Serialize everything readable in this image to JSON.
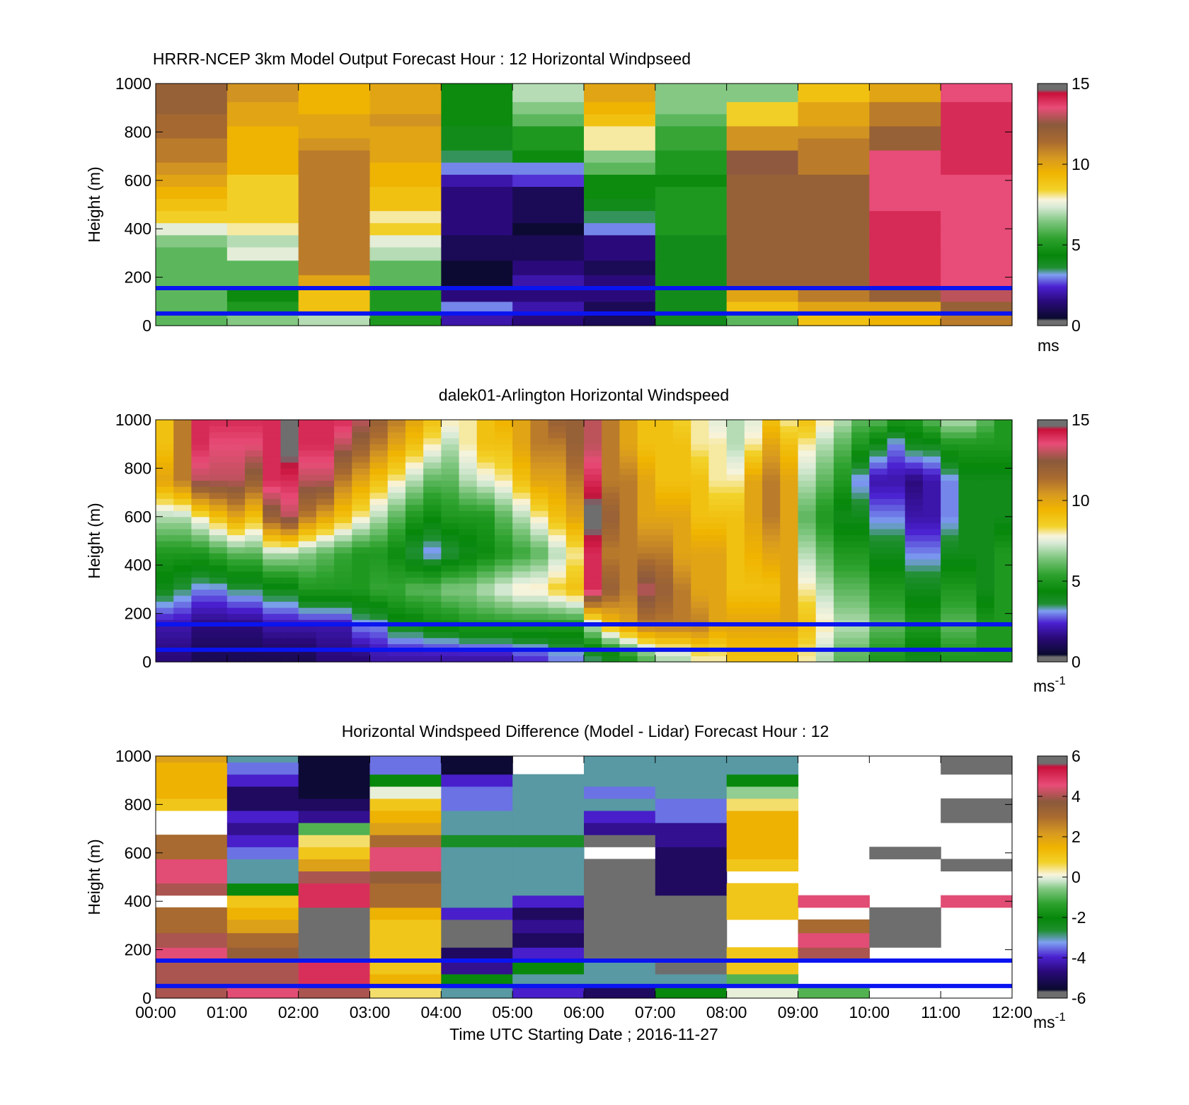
{
  "figure": {
    "xlabel": "Time UTC  Starting Date ; 2016-11-27",
    "x_ticks": [
      "00:00",
      "01:00",
      "02:00",
      "03:00",
      "04:00",
      "05:00",
      "06:00",
      "07:00",
      "08:00",
      "09:00",
      "10:00",
      "11:00",
      "12:00"
    ]
  },
  "chart_data": [
    {
      "type": "heatmap",
      "title": "HRRR-NCEP 3km Model Output   Forecast Hour : 12 Horizontal Windpseed",
      "ylabel": "Height (m)",
      "x_tick_labels_shown": false,
      "y_ticks": [
        "0",
        "200",
        "400",
        "600",
        "800",
        "1000"
      ],
      "ylim": [
        0,
        1000
      ],
      "xlim": [
        "00:00",
        "12:00"
      ],
      "colorbar": {
        "ticks": [
          "0",
          "5",
          "10",
          "15"
        ],
        "min": 0,
        "max": 15,
        "unit": "ms",
        "unit_sup": "",
        "palette": "speed"
      },
      "reference_lines_m": [
        50,
        155
      ],
      "x_step_hours": 1,
      "heights_m": [
        25,
        75,
        125,
        180,
        240,
        300,
        350,
        400,
        450,
        500,
        550,
        600,
        650,
        700,
        750,
        800,
        850,
        900,
        950,
        1000
      ],
      "values": [
        [
          6,
          6.5,
          7,
          5,
          2,
          1.5,
          1,
          4,
          6,
          9,
          9.5,
          11
        ],
        [
          6,
          5,
          9,
          5,
          3,
          2,
          1,
          4,
          9,
          10,
          10,
          12
        ],
        [
          6,
          4.5,
          9,
          5,
          1.5,
          1.5,
          1.5,
          4,
          10,
          11,
          12,
          13
        ],
        [
          6,
          6,
          10,
          6,
          0.5,
          2,
          1.5,
          4,
          12,
          12,
          14,
          13.5
        ],
        [
          6,
          6,
          11,
          6,
          0.5,
          1.5,
          1,
          4,
          12,
          12,
          14,
          13.5
        ],
        [
          6,
          7.5,
          11,
          7,
          1,
          1,
          1.5,
          4,
          12,
          12,
          14,
          13.5
        ],
        [
          6.5,
          7,
          11,
          7.5,
          1,
          1,
          1.5,
          4,
          12,
          12,
          14,
          13.5
        ],
        [
          7.5,
          8,
          11,
          8.5,
          1.5,
          0.5,
          3,
          5,
          12,
          12,
          14,
          13.5
        ],
        [
          8.5,
          8.5,
          11,
          8,
          1.5,
          1,
          3.5,
          5,
          12,
          12,
          14,
          13.5
        ],
        [
          9,
          8.5,
          11,
          9,
          1.5,
          1,
          4,
          5,
          12,
          12,
          13.5,
          13.5
        ],
        [
          9.5,
          8.5,
          11,
          9,
          1.5,
          1,
          4.5,
          5,
          12,
          12,
          13.5,
          13.5
        ],
        [
          10,
          8.5,
          11,
          9.5,
          2,
          2.5,
          4.5,
          4.5,
          12,
          12,
          13.5,
          13.5
        ],
        [
          10.5,
          9.5,
          11,
          9.5,
          3,
          3,
          6,
          5,
          12.5,
          11,
          13.5,
          14
        ],
        [
          11,
          9.5,
          11,
          10,
          3.5,
          4.5,
          6.5,
          5,
          12.5,
          11,
          13.5,
          14
        ],
        [
          11,
          9.5,
          10.5,
          10,
          4,
          5,
          8,
          5.5,
          10.5,
          11,
          12,
          14
        ],
        [
          11.5,
          9.5,
          10,
          10,
          4,
          5,
          8,
          5.5,
          10.5,
          10.5,
          12,
          14
        ],
        [
          11.5,
          10,
          10,
          10.5,
          4.5,
          6,
          9,
          6,
          8.5,
          10,
          11,
          14
        ],
        [
          12,
          10,
          9.5,
          10,
          4.5,
          6.5,
          9.5,
          6.5,
          8.5,
          10,
          11,
          14
        ],
        [
          12,
          10.5,
          9.5,
          10,
          4.5,
          7,
          10,
          6.5,
          6.5,
          9,
          10,
          13.5
        ],
        [
          12,
          10.5,
          9.5,
          10,
          4.5,
          7,
          10,
          6.5,
          6.5,
          9,
          10,
          13.5
        ]
      ]
    },
    {
      "type": "heatmap",
      "title": "dalek01-Arlington  Horizontal Windspeed",
      "ylabel": "Height (m)",
      "x_tick_labels_shown": false,
      "y_ticks": [
        "0",
        "200",
        "400",
        "600",
        "800",
        "1000"
      ],
      "ylim": [
        0,
        1000
      ],
      "xlim": [
        "00:00",
        "12:00"
      ],
      "colorbar": {
        "ticks": [
          "0",
          "5",
          "10",
          "15"
        ],
        "min": 0,
        "max": 15,
        "unit": "ms",
        "unit_sup": "-1",
        "palette": "speed"
      },
      "reference_lines_m": [
        50,
        155
      ],
      "x_step_hours": 0.25,
      "profile_anchor_heights_m": [
        25,
        150,
        300,
        450,
        600,
        750,
        900,
        1000
      ],
      "profile_values": [
        [
          1.5,
          2,
          4,
          5,
          7,
          10,
          9,
          9
        ],
        [
          1.5,
          2,
          3.5,
          5,
          7,
          11,
          11,
          11
        ],
        [
          1,
          1.5,
          3,
          5,
          8,
          13,
          14,
          14
        ],
        [
          1,
          1.5,
          3,
          5.5,
          9,
          13,
          13.5,
          14
        ],
        [
          1,
          1.5,
          3.5,
          6,
          10,
          13,
          13.5,
          14
        ],
        [
          1,
          1.5,
          3.5,
          6,
          9,
          12,
          13.5,
          14
        ],
        [
          1,
          2,
          4,
          7,
          12,
          14,
          14,
          14
        ],
        [
          1,
          2,
          4,
          7,
          13,
          14,
          15,
          15
        ],
        [
          1,
          2,
          5,
          6.5,
          11,
          13,
          14,
          14
        ],
        [
          1.5,
          2,
          5,
          6,
          10,
          13,
          14,
          14
        ],
        [
          1.5,
          2,
          5,
          5.5,
          9,
          11,
          13,
          14
        ],
        [
          1.5,
          3,
          5,
          5,
          8,
          10,
          12,
          13
        ],
        [
          2,
          3,
          5.5,
          5,
          7,
          9,
          11,
          12
        ],
        [
          2,
          4,
          5.5,
          4.5,
          6,
          8,
          10,
          11
        ],
        [
          2,
          4,
          6,
          3.5,
          5,
          7,
          9,
          10
        ],
        [
          2,
          4.5,
          6,
          3,
          4.5,
          6,
          8,
          9
        ],
        [
          2,
          4.5,
          6.5,
          3.5,
          5,
          6,
          7,
          8
        ],
        [
          2,
          5,
          6.5,
          4,
          5,
          7,
          8,
          8
        ],
        [
          2,
          5,
          7,
          4.5,
          5,
          7.5,
          9,
          9
        ],
        [
          2,
          5,
          7.5,
          5,
          6,
          8,
          9,
          9.5
        ],
        [
          2.5,
          5,
          8,
          5.5,
          7,
          9,
          10,
          10
        ],
        [
          2.5,
          5,
          8,
          6,
          8,
          10,
          11,
          11
        ],
        [
          3,
          5,
          8.5,
          7,
          9,
          10,
          11,
          12
        ],
        [
          3,
          5,
          9,
          8,
          10,
          11,
          12,
          12
        ],
        [
          3.5,
          7,
          14,
          14,
          15,
          14,
          13,
          13
        ],
        [
          4,
          9,
          12,
          11,
          12,
          11,
          11,
          11
        ],
        [
          5,
          10,
          11,
          11,
          11,
          11,
          10,
          10
        ],
        [
          6,
          11,
          13,
          11,
          10,
          10,
          9,
          9
        ],
        [
          7,
          11,
          12,
          11,
          10,
          9,
          9,
          9
        ],
        [
          7,
          11,
          11,
          10,
          10,
          9,
          9,
          8.5
        ],
        [
          8,
          11,
          10,
          10,
          9,
          9,
          8,
          8
        ],
        [
          8,
          10,
          10,
          10,
          9,
          8,
          8,
          7.5
        ],
        [
          9,
          10,
          9,
          9,
          9,
          8,
          7,
          7
        ],
        [
          9,
          10,
          9,
          9.5,
          10,
          10,
          8,
          7.5
        ],
        [
          9,
          10,
          9,
          10,
          11,
          11,
          10,
          9
        ],
        [
          9,
          10,
          10,
          10,
          10,
          10,
          9,
          8
        ],
        [
          8,
          9,
          8,
          7,
          6,
          7,
          8,
          9
        ],
        [
          7,
          8,
          7,
          6,
          5,
          6,
          7,
          8
        ],
        [
          6,
          7,
          6,
          5,
          4,
          5,
          6,
          7
        ],
        [
          6,
          7,
          6,
          5,
          4,
          3,
          5,
          6
        ],
        [
          5,
          6,
          5,
          4,
          3,
          2,
          4,
          6
        ],
        [
          5,
          6,
          5,
          4,
          3,
          2,
          3,
          5
        ],
        [
          4,
          5,
          4,
          3,
          2,
          1.5,
          4,
          5
        ],
        [
          4,
          5,
          4,
          3,
          2,
          2,
          4,
          6
        ],
        [
          5,
          6,
          5,
          4,
          3,
          3,
          5,
          7
        ],
        [
          5,
          6,
          5,
          4,
          4,
          4,
          5,
          7
        ],
        [
          5,
          5,
          4,
          4,
          4,
          4,
          5,
          6
        ],
        [
          5,
          5,
          5,
          5,
          4,
          4,
          5,
          5
        ]
      ]
    },
    {
      "type": "heatmap",
      "title": "Horizontal Windspeed Difference (Model - Lidar) Forecast Hour : 12",
      "ylabel": "Height (m)",
      "x_tick_labels_shown": true,
      "y_ticks": [
        "0",
        "200",
        "400",
        "600",
        "800",
        "1000"
      ],
      "ylim": [
        0,
        1000
      ],
      "xlim": [
        "00:00",
        "12:00"
      ],
      "colorbar": {
        "ticks": [
          "-6",
          "-4",
          "-2",
          "0",
          "2",
          "4",
          "6"
        ],
        "min": -6,
        "max": 6,
        "unit": "ms",
        "unit_sup": "-1",
        "palette": "diff"
      },
      "reference_lines_m": [
        50,
        155
      ],
      "x_step_hours": 1,
      "heights_m": [
        25,
        75,
        125,
        180,
        240,
        300,
        350,
        400,
        450,
        500,
        550,
        600,
        650,
        700,
        750,
        800,
        850,
        900,
        950,
        1000
      ],
      "values": [
        [
          4,
          4.5,
          4,
          0.5,
          -3,
          -4,
          -5,
          -2,
          0,
          -1,
          null,
          null
        ],
        [
          4,
          4,
          5,
          1.5,
          -2,
          -3,
          -3,
          -3,
          -1,
          null,
          null,
          null
        ],
        [
          4,
          4,
          5,
          1,
          -4.5,
          -2,
          -3,
          -6,
          1,
          null,
          null,
          null
        ],
        [
          4.5,
          3.5,
          -6.5,
          1,
          -5,
          -4,
          -6.5,
          -6.5,
          1,
          4,
          null,
          null
        ],
        [
          4,
          3,
          -6.5,
          1,
          -6.5,
          -5,
          -6.5,
          -6.5,
          null,
          4.5,
          -6.5,
          null
        ],
        [
          3,
          2,
          -6.5,
          1,
          -6.5,
          -4.5,
          -6.5,
          -6.5,
          null,
          3,
          -6.5,
          null
        ],
        [
          3,
          1.5,
          -6.5,
          1.5,
          -4,
          -5,
          -6.5,
          -6.5,
          1,
          null,
          -6.5,
          null
        ],
        [
          null,
          1,
          5,
          3,
          -3,
          -4,
          -6.5,
          -6,
          1,
          4.5,
          null,
          4.5
        ],
        [
          4,
          -2,
          5,
          3,
          -3,
          -3,
          -6.5,
          -5,
          1,
          null,
          null,
          null
        ],
        [
          4.5,
          -3,
          4,
          3.5,
          -3,
          -3,
          -6.5,
          -5,
          null,
          null,
          null,
          null
        ],
        [
          4.5,
          -3,
          2,
          4.5,
          -3,
          -3,
          -6.5,
          -5,
          1,
          null,
          null,
          -6.5
        ],
        [
          3,
          -3.5,
          1,
          4.5,
          -3,
          -3,
          null,
          -5,
          1.5,
          null,
          -6.5,
          null
        ],
        [
          3,
          -4,
          0.5,
          3,
          -2.5,
          -2.5,
          -6.5,
          -4.5,
          1.5,
          null,
          null,
          null
        ],
        [
          null,
          -4.5,
          -1,
          2,
          -3,
          -3,
          -4.5,
          -4.5,
          1.5,
          null,
          null,
          null
        ],
        [
          null,
          -4,
          -4.5,
          1.5,
          -3,
          -3,
          -4,
          -3.5,
          1.5,
          null,
          null,
          -6.5
        ],
        [
          1,
          -5,
          -5,
          1,
          -3.5,
          -3,
          -3,
          -3.5,
          0.5,
          null,
          null,
          -6.5
        ],
        [
          1.5,
          -5,
          -5.5,
          0,
          -3.5,
          -3,
          -3.5,
          -3,
          -0.5,
          null,
          null,
          null
        ],
        [
          1.5,
          -4,
          -5.5,
          -2,
          -4,
          -3,
          -3,
          -3,
          -2,
          null,
          null,
          null
        ],
        [
          1.5,
          -3.5,
          -5.5,
          -3.5,
          -5.5,
          null,
          -3,
          -3,
          -3,
          null,
          null,
          -6.5
        ],
        [
          2,
          -3,
          -5.5,
          -3.5,
          -5.5,
          null,
          -3,
          -3,
          -3,
          null,
          null,
          -6.5
        ]
      ]
    }
  ]
}
